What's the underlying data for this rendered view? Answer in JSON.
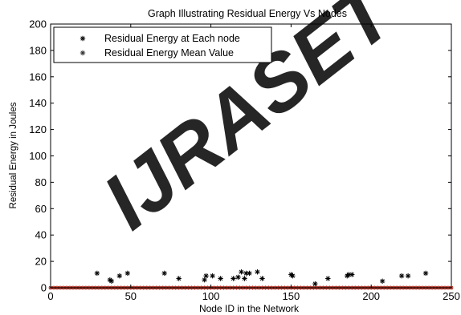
{
  "chart_data": {
    "type": "scatter",
    "title": "Graph Illustrating Residual Energy Vs Nodes",
    "xlabel": "Node ID in the Network",
    "ylabel": "Residual Energy in Joules",
    "xlim": [
      0,
      250
    ],
    "ylim": [
      0,
      200
    ],
    "xticks": [
      0,
      50,
      100,
      150,
      200,
      250
    ],
    "yticks": [
      0,
      20,
      40,
      60,
      80,
      100,
      120,
      140,
      160,
      180,
      200
    ],
    "xtick_labels": [
      "0",
      "50",
      "100",
      "150",
      "200",
      "250"
    ],
    "ytick_labels": [
      "0",
      "20",
      "40",
      "60",
      "80",
      "100",
      "120",
      "140",
      "160",
      "180",
      "200"
    ],
    "grid": false,
    "legend": {
      "position": "top-left",
      "entries": [
        "Residual Energy at Each node",
        "Residual Energy Mean Value"
      ]
    },
    "series": [
      {
        "name": "Residual Energy at Each node",
        "color": "#000000",
        "marker": "asterisk",
        "baseline_value": 0,
        "baseline_x_range": [
          0,
          250
        ],
        "points": [
          {
            "x": 29,
            "y": 11
          },
          {
            "x": 37,
            "y": 6
          },
          {
            "x": 38,
            "y": 5
          },
          {
            "x": 43,
            "y": 9
          },
          {
            "x": 48,
            "y": 11
          },
          {
            "x": 71,
            "y": 11
          },
          {
            "x": 80,
            "y": 7
          },
          {
            "x": 96,
            "y": 6
          },
          {
            "x": 97,
            "y": 9
          },
          {
            "x": 101,
            "y": 9
          },
          {
            "x": 106,
            "y": 7
          },
          {
            "x": 114,
            "y": 7
          },
          {
            "x": 117,
            "y": 8
          },
          {
            "x": 119,
            "y": 12
          },
          {
            "x": 121,
            "y": 7
          },
          {
            "x": 122,
            "y": 11
          },
          {
            "x": 124,
            "y": 11
          },
          {
            "x": 129,
            "y": 12
          },
          {
            "x": 132,
            "y": 7
          },
          {
            "x": 150,
            "y": 10
          },
          {
            "x": 151,
            "y": 9
          },
          {
            "x": 165,
            "y": 3
          },
          {
            "x": 173,
            "y": 7
          },
          {
            "x": 185,
            "y": 9
          },
          {
            "x": 186,
            "y": 10
          },
          {
            "x": 188,
            "y": 10
          },
          {
            "x": 207,
            "y": 5
          },
          {
            "x": 219,
            "y": 9
          },
          {
            "x": 223,
            "y": 9
          },
          {
            "x": 234,
            "y": 11
          }
        ]
      },
      {
        "name": "Residual Energy Mean Value",
        "color": "#c0392b",
        "marker": "asterisk",
        "value": 0,
        "x_range": [
          0,
          250
        ]
      }
    ]
  },
  "watermark": {
    "text": "IJRASET",
    "color": "#ff1a1a"
  }
}
